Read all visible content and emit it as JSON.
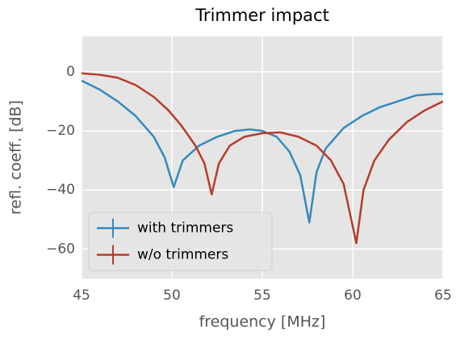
{
  "chart_data": {
    "type": "line",
    "title": "Trimmer impact",
    "xlabel": "frequency [MHz]",
    "ylabel": "refl. coeff. [dB]",
    "xlim": [
      45,
      65
    ],
    "xticks": [
      45,
      50,
      55,
      60,
      65
    ],
    "ylim": [
      -70,
      12
    ],
    "yticks": [
      {
        "value": -60,
        "label": "−60"
      },
      {
        "value": -40,
        "label": "−40"
      },
      {
        "value": -20,
        "label": "−20"
      },
      0
    ],
    "grid": true,
    "legend": "lower left",
    "series": [
      {
        "name": "with trimmers",
        "color": "#348abd",
        "x": [
          45,
          46,
          47,
          48,
          49,
          49.6,
          50.1,
          50.6,
          51.5,
          52.5,
          53.5,
          54.3,
          55,
          55.8,
          56.5,
          57.1,
          57.6,
          58,
          58.5,
          59.5,
          60.5,
          61.5,
          62.5,
          63.5,
          64.5,
          65
        ],
        "values": [
          -3,
          -6,
          -10,
          -15,
          -22,
          -29,
          -39,
          -30,
          -25,
          -22,
          -20,
          -19.5,
          -20,
          -22,
          -27,
          -35,
          -51,
          -34,
          -26,
          -19,
          -15,
          -12,
          -10,
          -8,
          -7.5,
          -7.5
        ]
      },
      {
        "name": "w/o trimmers",
        "color": "#b63c2c",
        "x": [
          45,
          46,
          47,
          48,
          49,
          49.8,
          50.5,
          51.3,
          51.8,
          52.2,
          52.6,
          53.2,
          54,
          55,
          56,
          57,
          58,
          58.8,
          59.5,
          60.2,
          60.6,
          61.2,
          62,
          63,
          64,
          65
        ],
        "values": [
          -0.5,
          -1,
          -2,
          -4.5,
          -8.5,
          -13,
          -18,
          -25,
          -31,
          -41.5,
          -31,
          -25,
          -22,
          -20.8,
          -20.5,
          -22,
          -25,
          -30,
          -38,
          -58,
          -40,
          -30,
          -23,
          -17,
          -13,
          -10
        ]
      }
    ]
  }
}
